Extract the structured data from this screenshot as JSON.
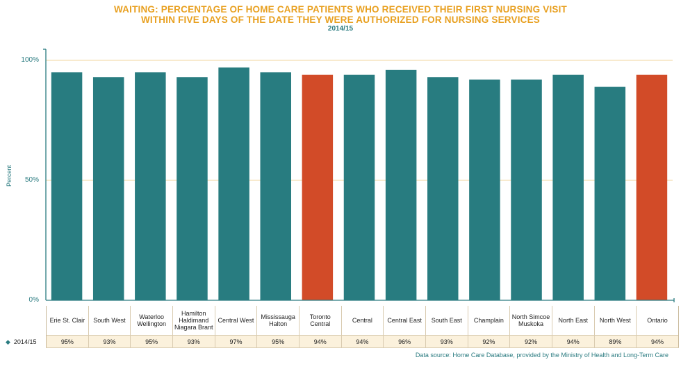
{
  "chart_data": {
    "type": "bar",
    "title_line1": "WAITING: PERCENTAGE OF HOME CARE PATIENTS WHO RECEIVED THEIR FIRST NURSING VISIT",
    "title_line2": "WITHIN FIVE DAYS OF THE DATE THEY WERE AUTHORIZED FOR NURSING SERVICES",
    "subtitle": "2014/15",
    "ylabel": "Percent",
    "ylim": [
      0,
      100
    ],
    "yticks": [
      "0%",
      "50%",
      "100%"
    ],
    "series_name": "2014/15",
    "categories": [
      "Erie St. Clair",
      "South West",
      "Waterloo Wellington",
      "Hamilton Haldimand Niagara Brant",
      "Central West",
      "Mississauga Halton",
      "Toronto Central",
      "Central",
      "Central East",
      "South East",
      "Champlain",
      "North Simcoe Muskoka",
      "North East",
      "North West",
      "Ontario"
    ],
    "values": [
      95,
      93,
      95,
      93,
      97,
      95,
      94,
      94,
      96,
      93,
      92,
      92,
      94,
      89,
      94
    ],
    "value_labels": [
      "95%",
      "93%",
      "95%",
      "93%",
      "97%",
      "95%",
      "94%",
      "94%",
      "96%",
      "93%",
      "92%",
      "92%",
      "94%",
      "89%",
      "94%"
    ],
    "highlight": [
      "Toronto Central",
      "Ontario"
    ],
    "colors": {
      "bar": "#287c80",
      "highlight": "#d24b28",
      "grid": "#f0d69c",
      "axis": "#2a7b80"
    },
    "source": "Data source: Home Care Database, provided by the Ministry of Health and Long-Term Care"
  }
}
